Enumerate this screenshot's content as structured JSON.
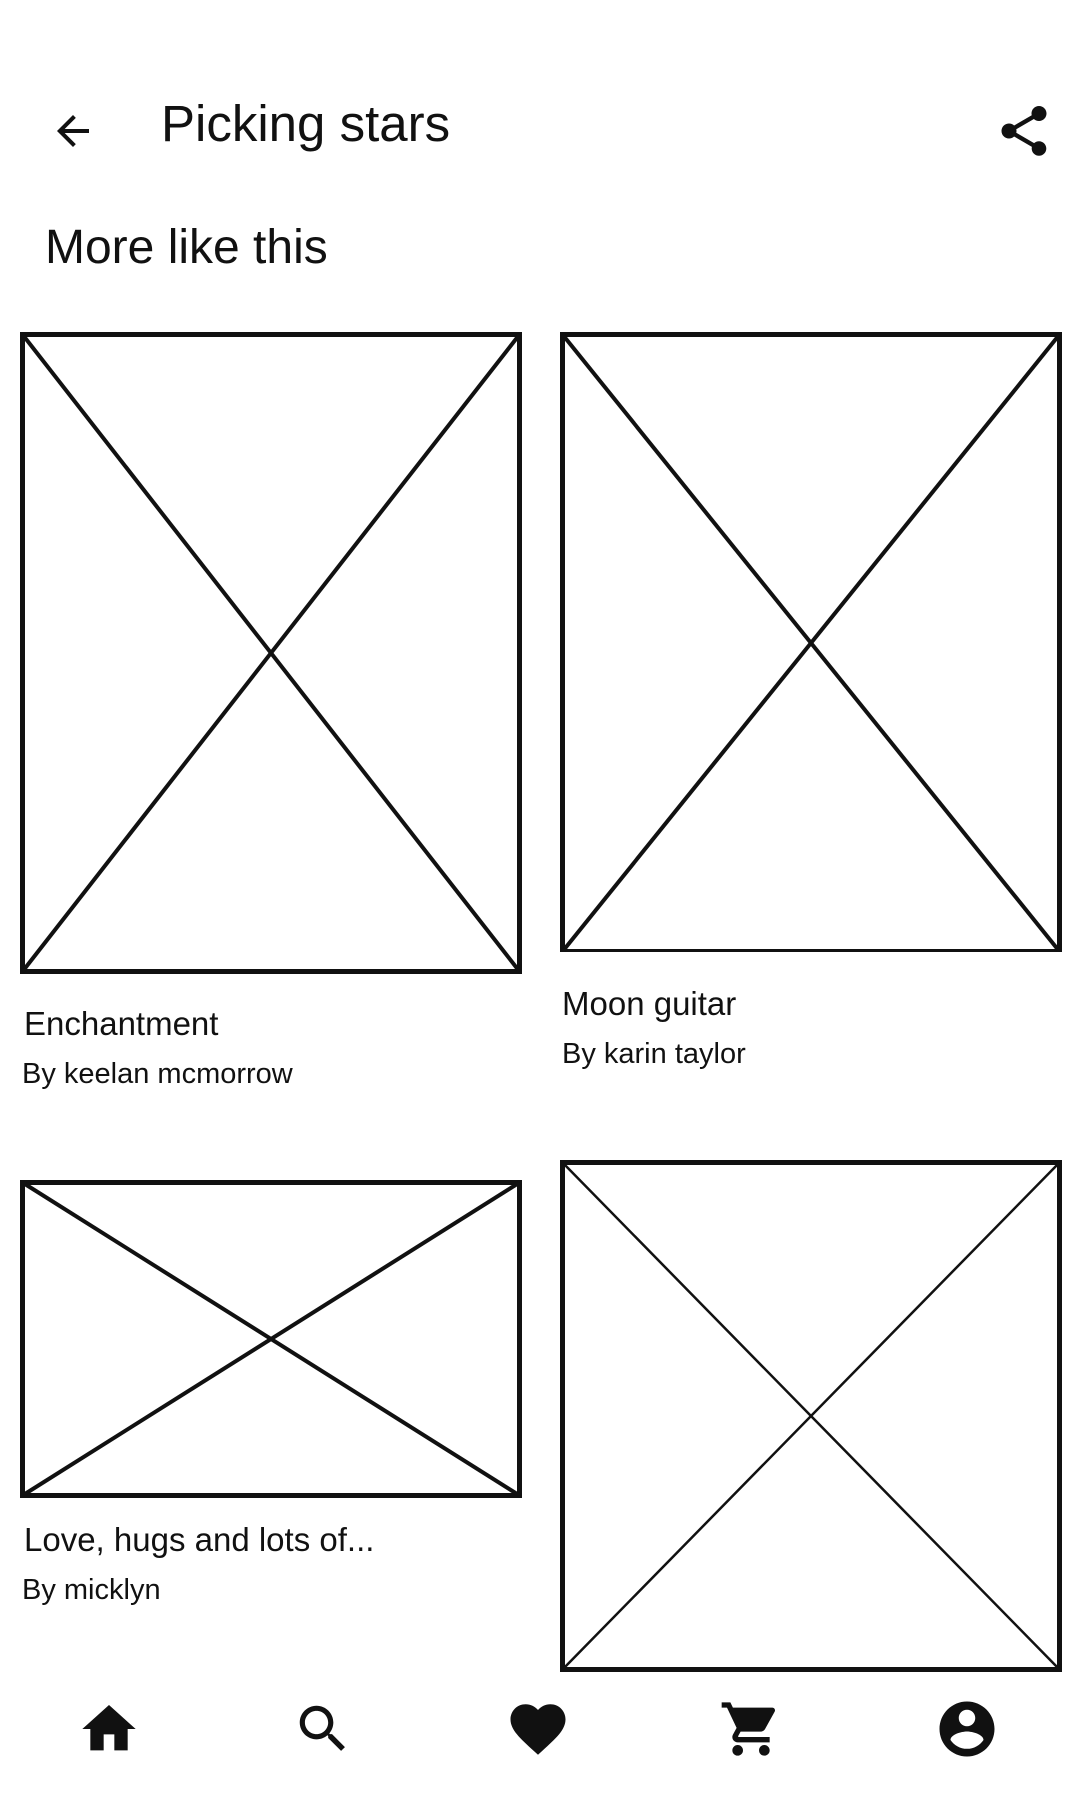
{
  "header": {
    "title": "Picking stars",
    "back_icon": "arrow-back-icon",
    "share_icon": "share-icon"
  },
  "section": {
    "title": "More like this"
  },
  "cards": [
    {
      "title": "Enchantment",
      "author": "By keelan mcmorrow"
    },
    {
      "title": "Moon guitar",
      "author": "By karin taylor"
    },
    {
      "title": "Love, hugs and lots of...",
      "author": "By micklyn"
    },
    {
      "title": "",
      "author": ""
    }
  ],
  "bottom_nav": {
    "items": [
      {
        "icon": "home-icon"
      },
      {
        "icon": "search-icon"
      },
      {
        "icon": "heart-icon"
      },
      {
        "icon": "cart-icon"
      },
      {
        "icon": "account-icon"
      }
    ]
  },
  "colors": {
    "foreground": "#111111",
    "background": "#ffffff"
  }
}
